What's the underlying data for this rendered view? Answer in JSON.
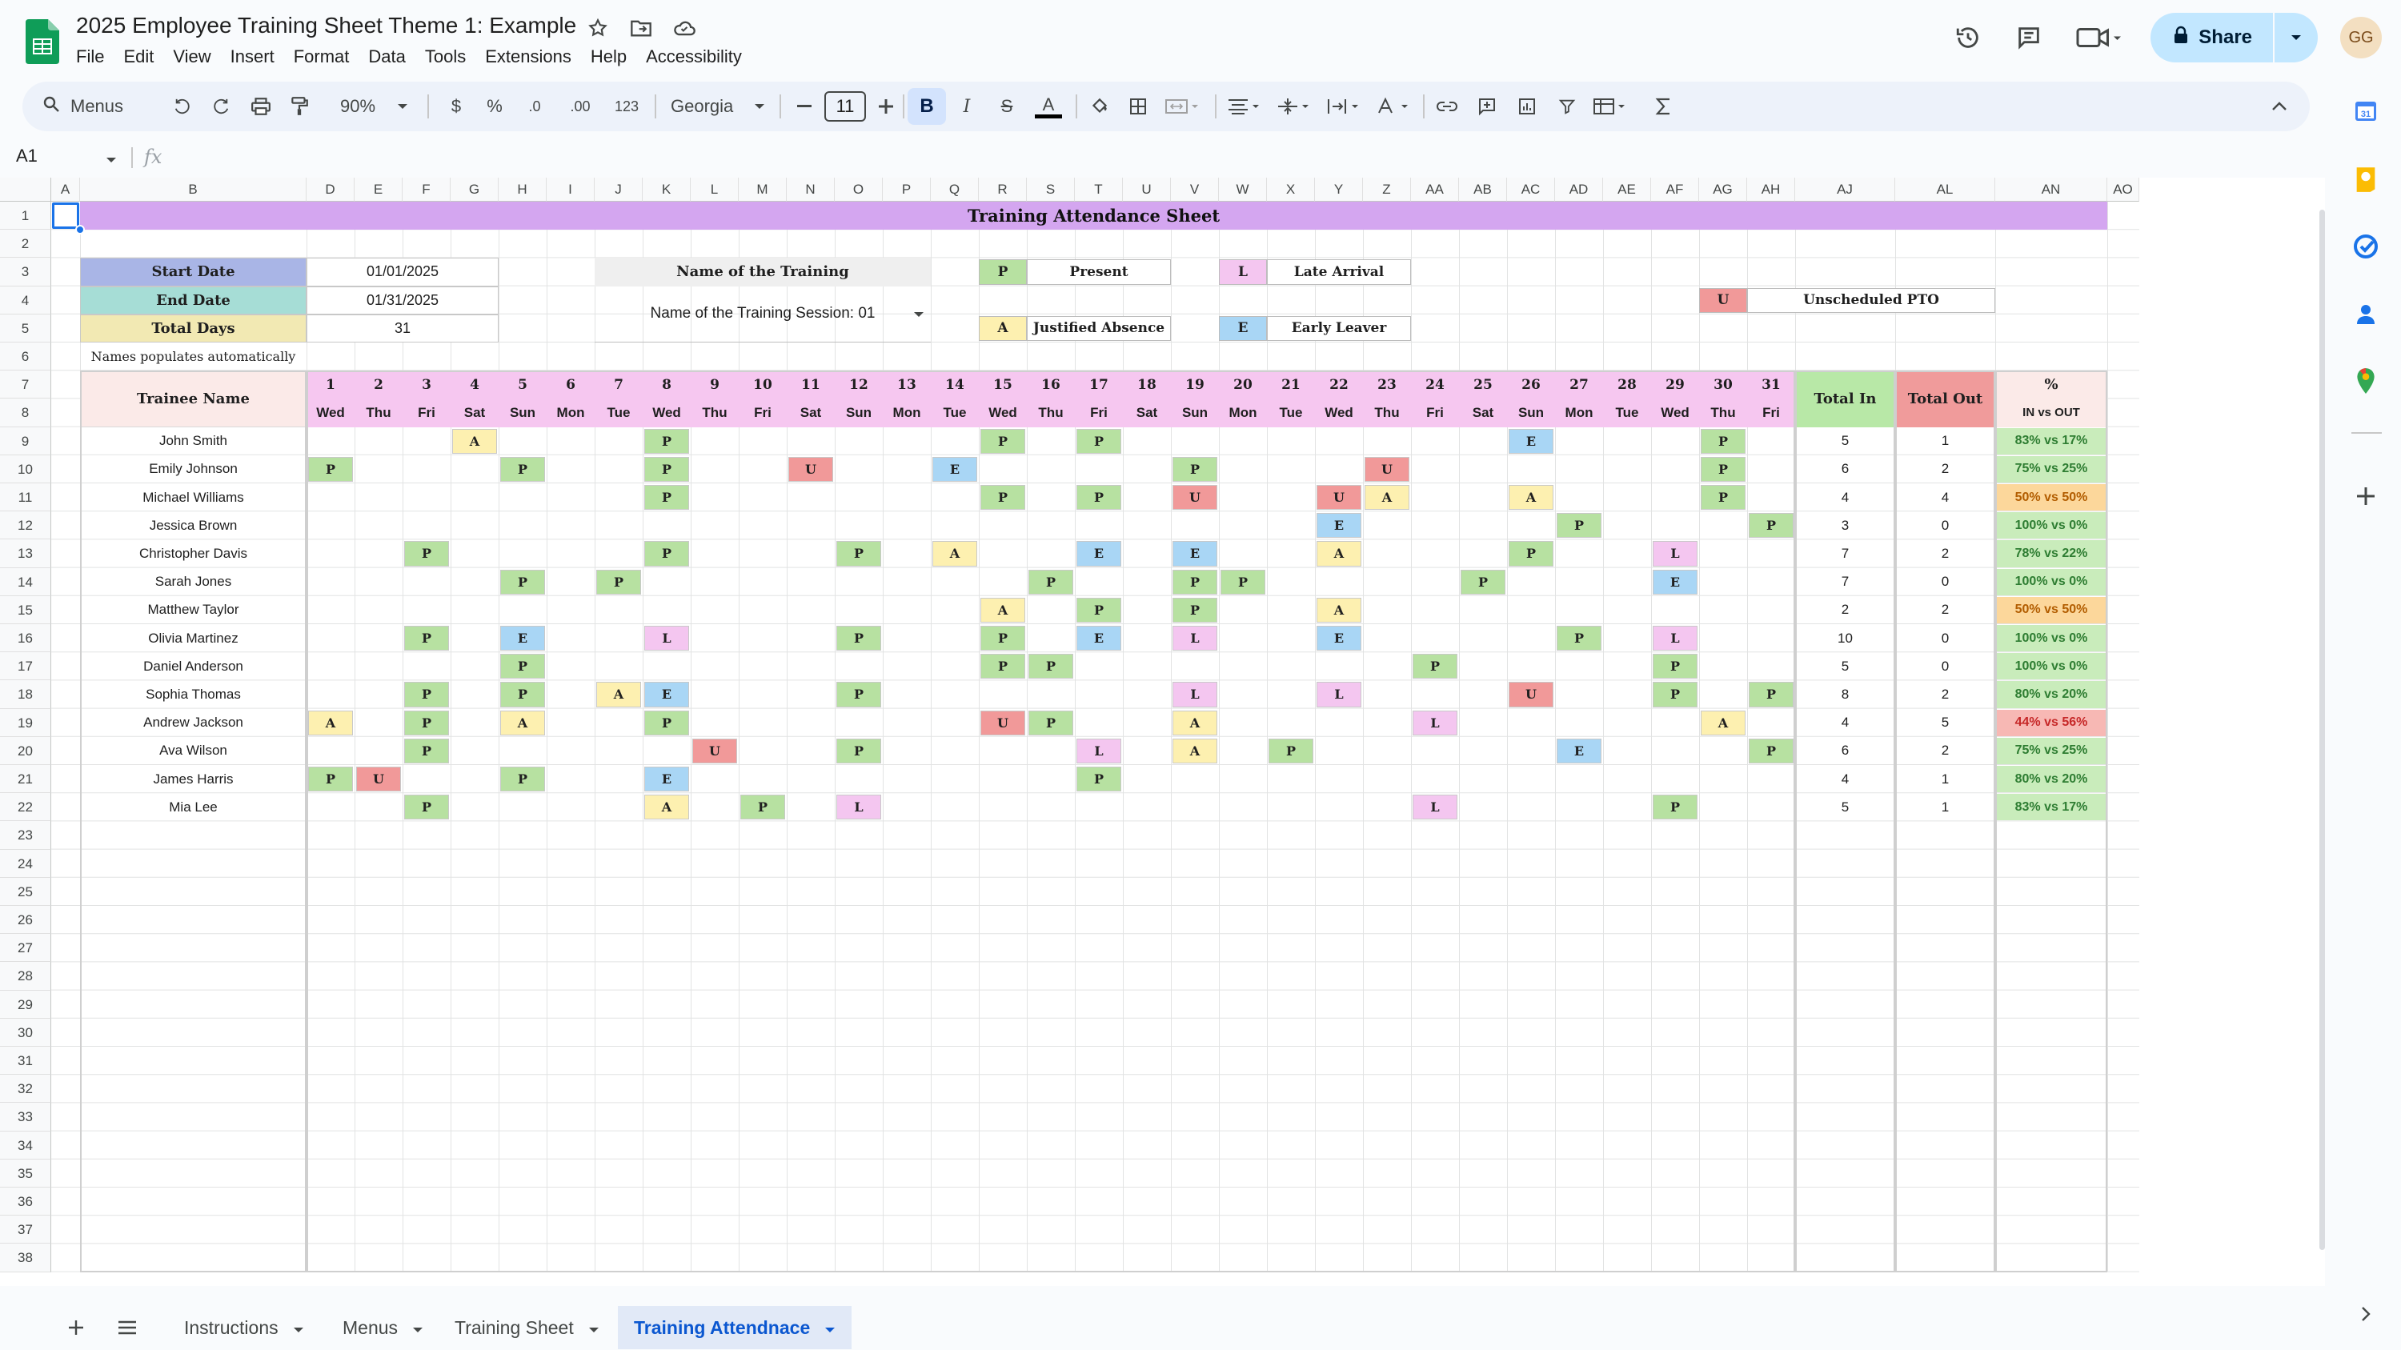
{
  "app": {
    "doc_title": "2025 Employee Training Sheet Theme 1: Example",
    "menu": [
      "File",
      "Edit",
      "View",
      "Insert",
      "Format",
      "Data",
      "Tools",
      "Extensions",
      "Help",
      "Accessibility"
    ],
    "share_label": "Share",
    "avatar_initials": "GG"
  },
  "toolbar": {
    "search_label": "Menus",
    "zoom": "90%",
    "currency": "$",
    "percent": "%",
    "dec_less": ".0",
    "dec_more": ".00",
    "number_format": "123",
    "font": "Georgia",
    "font_size": "11",
    "bold": "B",
    "italic": "I",
    "strike": "S",
    "text_color": "A"
  },
  "formula_bar": {
    "cell_ref": "A1",
    "fx": "fx"
  },
  "columns": [
    "A",
    "B",
    "D",
    "E",
    "F",
    "G",
    "H",
    "I",
    "J",
    "K",
    "L",
    "M",
    "N",
    "O",
    "P",
    "Q",
    "R",
    "S",
    "T",
    "U",
    "V",
    "W",
    "X",
    "Y",
    "Z",
    "AA",
    "AB",
    "AC",
    "AD",
    "AE",
    "AF",
    "AG",
    "AH",
    "AJ",
    "AL",
    "AN",
    "AO"
  ],
  "rows": [
    "1",
    "2",
    "3",
    "4",
    "5",
    "6",
    "7",
    "8",
    "9",
    "10",
    "11",
    "12",
    "13",
    "14",
    "15",
    "16",
    "17",
    "18",
    "19",
    "20",
    "21",
    "22",
    "23",
    "24",
    "25",
    "26",
    "27",
    "28",
    "29",
    "30",
    "31",
    "32",
    "33",
    "34",
    "35",
    "36",
    "37",
    "38"
  ],
  "sheet": {
    "title": "Training Attendance Sheet",
    "start_date_label": "Start Date",
    "start_date": "01/01/2025",
    "end_date_label": "End Date",
    "end_date": "01/31/2025",
    "total_days_label": "Total Days",
    "total_days": "31",
    "names_note": "Names populates automatically",
    "training_name_label": "Name of the Training",
    "training_session": "Name of the Training Session: 01",
    "legend": [
      {
        "code": "P",
        "label": "Present",
        "color": "#b7e1a1"
      },
      {
        "code": "L",
        "label": "Late Arrival",
        "color": "#f4c6f0"
      },
      {
        "code": "U",
        "label": "Unscheduled PTO",
        "color": "#f19999"
      },
      {
        "code": "A",
        "label": "Justified Absence",
        "color": "#fdf0b0"
      },
      {
        "code": "E",
        "label": "Early Leaver",
        "color": "#a9d6f5"
      }
    ],
    "trainee_header": "Trainee Name",
    "total_in_label": "Total In",
    "total_out_label": "Total Out",
    "pct_label": "%",
    "pct_sub_label": "IN vs OUT",
    "days": [
      "1",
      "2",
      "3",
      "4",
      "5",
      "6",
      "7",
      "8",
      "9",
      "10",
      "11",
      "12",
      "13",
      "14",
      "15",
      "16",
      "17",
      "18",
      "19",
      "20",
      "21",
      "22",
      "23",
      "24",
      "25",
      "26",
      "27",
      "28",
      "29",
      "30",
      "31"
    ],
    "weekdays": [
      "Wed",
      "Thu",
      "Fri",
      "Sat",
      "Sun",
      "Mon",
      "Tue",
      "Wed",
      "Thu",
      "Fri",
      "Sat",
      "Sun",
      "Mon",
      "Tue",
      "Wed",
      "Thu",
      "Fri",
      "Sat",
      "Sun",
      "Mon",
      "Tue",
      "Wed",
      "Thu",
      "Fri",
      "Sat",
      "Sun",
      "Mon",
      "Tue",
      "Wed",
      "Thu",
      "Fri"
    ],
    "trainees": [
      {
        "name": "John Smith",
        "marks": {
          "4": "A",
          "8": "P",
          "15": "P",
          "17": "P",
          "26": "E",
          "30": "P"
        },
        "total_in": "5",
        "total_out": "1",
        "pct": "83% vs 17%"
      },
      {
        "name": "Emily Johnson",
        "marks": {
          "1": "P",
          "5": "P",
          "8": "P",
          "11": "U",
          "14": "E",
          "19": "P",
          "23": "U",
          "30": "P"
        },
        "total_in": "6",
        "total_out": "2",
        "pct": "75% vs 25%"
      },
      {
        "name": "Michael Williams",
        "marks": {
          "8": "P",
          "15": "P",
          "17": "P",
          "19": "U",
          "22": "U",
          "23": "A",
          "26": "A",
          "30": "P"
        },
        "total_in": "4",
        "total_out": "4",
        "pct": "50% vs 50%"
      },
      {
        "name": "Jessica Brown",
        "marks": {
          "22": "E",
          "27": "P",
          "31": "P"
        },
        "total_in": "3",
        "total_out": "0",
        "pct": "100% vs 0%"
      },
      {
        "name": "Christopher Davis",
        "marks": {
          "3": "P",
          "8": "P",
          "12": "P",
          "14": "A",
          "17": "E",
          "19": "E",
          "22": "A",
          "26": "P",
          "29": "L"
        },
        "total_in": "7",
        "total_out": "2",
        "pct": "78% vs 22%"
      },
      {
        "name": "Sarah Jones",
        "marks": {
          "5": "P",
          "7": "P",
          "16": "P",
          "19": "P",
          "20": "P",
          "25": "P",
          "29": "E"
        },
        "total_in": "7",
        "total_out": "0",
        "pct": "100% vs 0%"
      },
      {
        "name": "Matthew Taylor",
        "marks": {
          "15": "A",
          "17": "P",
          "19": "P",
          "22": "A"
        },
        "total_in": "2",
        "total_out": "2",
        "pct": "50% vs 50%"
      },
      {
        "name": "Olivia Martinez",
        "marks": {
          "3": "P",
          "5": "E",
          "8": "L",
          "12": "P",
          "15": "P",
          "17": "E",
          "19": "L",
          "22": "E",
          "27": "P",
          "29": "L"
        },
        "total_in": "10",
        "total_out": "0",
        "pct": "100% vs 0%"
      },
      {
        "name": "Daniel Anderson",
        "marks": {
          "5": "P",
          "15": "P",
          "16": "P",
          "24": "P",
          "29": "P"
        },
        "total_in": "5",
        "total_out": "0",
        "pct": "100% vs 0%"
      },
      {
        "name": "Sophia Thomas",
        "marks": {
          "3": "P",
          "5": "P",
          "7": "A",
          "8": "E",
          "12": "P",
          "19": "L",
          "22": "L",
          "26": "U",
          "29": "P",
          "31": "P"
        },
        "total_in": "8",
        "total_out": "2",
        "pct": "80% vs 20%"
      },
      {
        "name": "Andrew Jackson",
        "marks": {
          "1": "A",
          "3": "P",
          "5": "A",
          "8": "P",
          "15": "U",
          "16": "P",
          "19": "A",
          "24": "L",
          "30": "A"
        },
        "total_in": "4",
        "total_out": "5",
        "pct": "44% vs 56%"
      },
      {
        "name": "Ava Wilson",
        "marks": {
          "3": "P",
          "9": "U",
          "12": "P",
          "17": "L",
          "19": "A",
          "21": "P",
          "27": "E",
          "31": "P"
        },
        "total_in": "6",
        "total_out": "2",
        "pct": "75% vs 25%"
      },
      {
        "name": "James Harris",
        "marks": {
          "1": "P",
          "2": "U",
          "5": "P",
          "8": "E",
          "17": "P"
        },
        "total_in": "4",
        "total_out": "1",
        "pct": "80% vs 20%"
      },
      {
        "name": "Mia Lee",
        "marks": {
          "3": "P",
          "8": "A",
          "10": "P",
          "12": "L",
          "24": "L",
          "29": "P"
        },
        "total_in": "5",
        "total_out": "1",
        "pct": "83% vs 17%"
      }
    ]
  },
  "tabs": [
    "Instructions",
    "Menus",
    "Training Sheet",
    "Training Attendnace"
  ],
  "active_tab": "Training Attendnace"
}
